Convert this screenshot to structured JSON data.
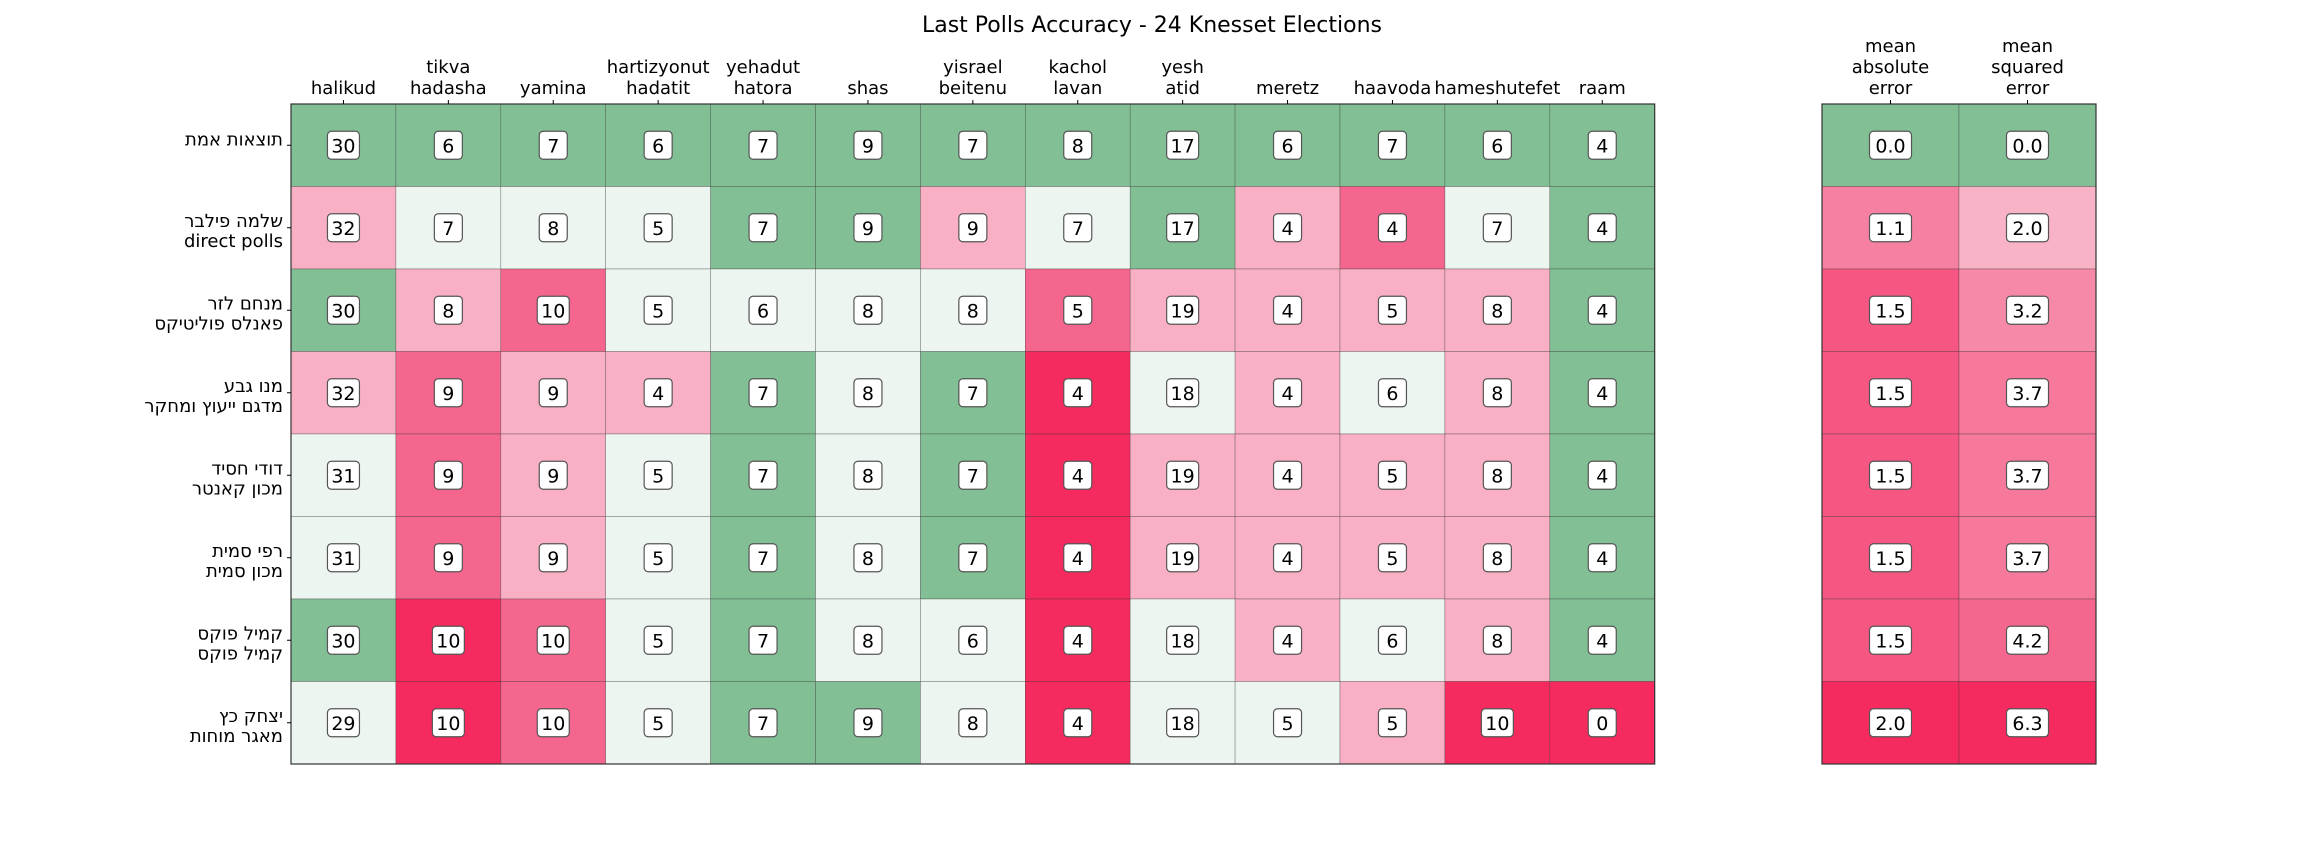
{
  "chart_data": {
    "type": "heatmap",
    "title": "Last Polls Accuracy - 24 Knesset Elections",
    "columns": [
      [
        "halikud"
      ],
      [
        "tikva",
        "hadasha"
      ],
      [
        "yamina"
      ],
      [
        "hartizyonut",
        "hadatit"
      ],
      [
        "yehadut",
        "hatora"
      ],
      [
        "shas"
      ],
      [
        "yisrael",
        "beitenu"
      ],
      [
        "kachol",
        "lavan"
      ],
      [
        "yesh",
        "atid"
      ],
      [
        "meretz"
      ],
      [
        "haavoda"
      ],
      [
        "hameshutefet"
      ],
      [
        "raam"
      ]
    ],
    "error_columns": [
      [
        "mean",
        "absolute",
        "error"
      ],
      [
        "mean",
        "squared",
        "error"
      ]
    ],
    "rows": [
      [
        "תוצאות אמת"
      ],
      [
        "שלמה פילבר",
        "direct polls"
      ],
      [
        "מנחם לזר",
        "פאנלס פוליטיקס"
      ],
      [
        "מנו גבע",
        "מדגם ייעוץ ומחקר"
      ],
      [
        "דודי חסיד",
        "מכון קאנטר"
      ],
      [
        "רפי סמית",
        "מכון סמית"
      ],
      [
        "קמיל פוקס",
        "קמיל פוקס"
      ],
      [
        "יצחק כץ",
        "מאגר מוחות"
      ]
    ],
    "values": [
      [
        30,
        6,
        7,
        6,
        7,
        9,
        7,
        8,
        17,
        6,
        7,
        6,
        4
      ],
      [
        32,
        7,
        8,
        5,
        7,
        9,
        9,
        7,
        17,
        4,
        4,
        7,
        4
      ],
      [
        30,
        8,
        10,
        5,
        6,
        8,
        8,
        5,
        19,
        4,
        5,
        8,
        4
      ],
      [
        32,
        9,
        9,
        4,
        7,
        8,
        7,
        4,
        18,
        4,
        6,
        8,
        4
      ],
      [
        31,
        9,
        9,
        5,
        7,
        8,
        7,
        4,
        19,
        4,
        5,
        8,
        4
      ],
      [
        31,
        9,
        9,
        5,
        7,
        8,
        7,
        4,
        19,
        4,
        5,
        8,
        4
      ],
      [
        30,
        10,
        10,
        5,
        7,
        8,
        6,
        4,
        18,
        4,
        6,
        8,
        4
      ],
      [
        29,
        10,
        10,
        5,
        7,
        9,
        8,
        4,
        18,
        5,
        5,
        10,
        0
      ]
    ],
    "errors": [
      [
        "0.0",
        "0.0"
      ],
      [
        "1.1",
        "2.0"
      ],
      [
        "1.5",
        "3.2"
      ],
      [
        "1.5",
        "3.7"
      ],
      [
        "1.5",
        "3.7"
      ],
      [
        "1.5",
        "3.7"
      ],
      [
        "1.5",
        "4.2"
      ],
      [
        "2.0",
        "6.3"
      ]
    ],
    "error_color_scale": {
      "mae_range": [
        0,
        2.0
      ],
      "mse_range": [
        0,
        6.3
      ]
    },
    "colors": {
      "exact": "#83bf95",
      "diff1": "#ecf5ef",
      "diff2": "#f9b0c4",
      "diff3": "#f5668e",
      "diff4": "#f52b5f",
      "grid": "#333333",
      "box_border": "#555555"
    }
  }
}
